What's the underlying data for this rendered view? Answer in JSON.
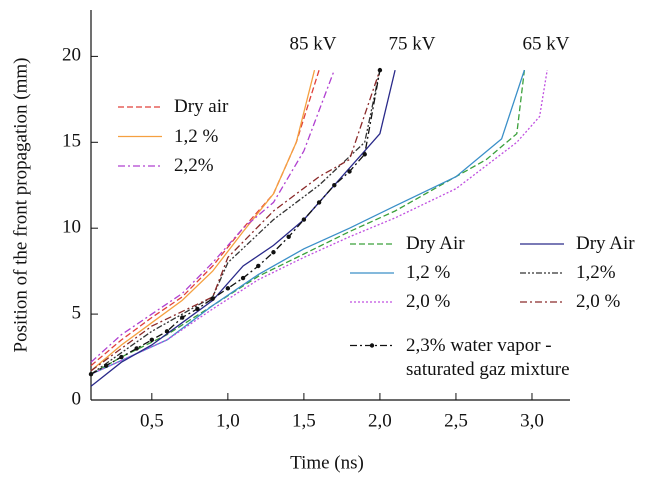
{
  "chart_data": {
    "type": "line",
    "xlabel": "Time (ns)",
    "ylabel": "Position of the front propagation (mm)",
    "annotations": [
      "85 kV",
      "75 kV",
      "65 kV"
    ],
    "xlim": [
      0.1,
      3.25
    ],
    "ylim": [
      0,
      22.7
    ],
    "xticks": [
      {
        "value": 0.5,
        "label": "0,5"
      },
      {
        "value": 1.0,
        "label": "1,0"
      },
      {
        "value": 1.5,
        "label": "1,5"
      },
      {
        "value": 2.0,
        "label": "2,0"
      },
      {
        "value": 2.5,
        "label": "2,5"
      },
      {
        "value": 3.0,
        "label": "3,0"
      }
    ],
    "yticks": [
      0,
      5,
      10,
      15,
      20
    ],
    "series": [
      {
        "name": "Dry air",
        "color": "#e0403a",
        "style": "dashed",
        "legend": "upper-left",
        "x": [
          0.1,
          0.3,
          0.5,
          0.7,
          0.9,
          1.1,
          1.3,
          1.45,
          1.6
        ],
        "values": [
          2,
          3.5,
          4.8,
          6,
          7.8,
          10,
          12,
          15,
          19.2
        ]
      },
      {
        "name": "1,2 %",
        "color": "#f5a040",
        "style": "solid",
        "legend": "upper-left",
        "x": [
          0.1,
          0.3,
          0.5,
          0.7,
          0.9,
          1.1,
          1.3,
          1.45,
          1.57
        ],
        "values": [
          1.7,
          3.2,
          4.5,
          5.8,
          7.5,
          9.8,
          12,
          15,
          19.2
        ]
      },
      {
        "name": "2,2%",
        "color": "#b040d0",
        "style": "dashdot",
        "legend": "upper-left",
        "x": [
          0.1,
          0.3,
          0.5,
          0.7,
          0.9,
          1.1,
          1.3,
          1.5,
          1.7
        ],
        "values": [
          2.2,
          3.8,
          5,
          6.2,
          8,
          10,
          11.5,
          14.5,
          19.2
        ]
      },
      {
        "name": "Dry Air",
        "color": "#3aa03a",
        "style": "dashed",
        "legend": "lower-right",
        "x": [
          0.1,
          0.3,
          0.6,
          0.9,
          1.2,
          1.5,
          1.8,
          2.1,
          2.4,
          2.7,
          2.9,
          2.95
        ],
        "values": [
          1.5,
          2.5,
          3.8,
          5.5,
          7.2,
          8.5,
          9.8,
          11,
          12.5,
          14,
          15.5,
          19.2
        ]
      },
      {
        "name": "1,2 %",
        "color": "#3a8fc8",
        "style": "solid",
        "legend": "lower-right",
        "x": [
          0.1,
          0.3,
          0.6,
          0.9,
          1.2,
          1.5,
          1.8,
          2.1,
          2.5,
          2.8,
          2.95
        ],
        "values": [
          1.5,
          2.3,
          3.5,
          5.5,
          7.3,
          8.8,
          10,
          11.3,
          13,
          15.2,
          19.2
        ]
      },
      {
        "name": "2,0 %",
        "color": "#c050e0",
        "style": "dotted",
        "legend": "lower-right",
        "x": [
          0.1,
          0.3,
          0.6,
          0.9,
          1.2,
          1.5,
          1.8,
          2.1,
          2.5,
          2.9,
          3.05,
          3.1
        ],
        "values": [
          1.5,
          2.3,
          3.5,
          5.3,
          7,
          8.3,
          9.5,
          10.6,
          12.3,
          15,
          16.5,
          19.2
        ]
      },
      {
        "name": "Dry Air",
        "color": "#2a2a8a",
        "style": "solid",
        "legend": "lower-right",
        "x": [
          0.1,
          0.3,
          0.5,
          0.7,
          0.9,
          1.1,
          1.3,
          1.5,
          1.7,
          1.9,
          2.0,
          2.1
        ],
        "values": [
          0.8,
          2.2,
          3.2,
          4.5,
          5.8,
          7.8,
          9,
          10.5,
          12.5,
          14.5,
          15.5,
          19.2
        ]
      },
      {
        "name": "1,2%",
        "color": "#333333",
        "style": "dashdotdot",
        "legend": "lower-right",
        "x": [
          0.1,
          0.5,
          0.9,
          1.0,
          1.3,
          1.6,
          1.9,
          2.0
        ],
        "values": [
          1.5,
          4,
          6,
          8,
          10.5,
          12.5,
          15,
          19.2
        ]
      },
      {
        "name": "2,0 %",
        "color": "#8b2a2a",
        "style": "dashdot",
        "legend": "lower-right",
        "x": [
          0.1,
          0.5,
          0.9,
          1.0,
          1.3,
          1.6,
          1.8,
          2.0
        ],
        "values": [
          1.7,
          4.3,
          6,
          8.3,
          11,
          13,
          14,
          19.2
        ]
      },
      {
        "name": "2,3% water vapor -\nsaturated gaz mixture",
        "color": "#111111",
        "style": "dashdot",
        "marker": true,
        "legend": "lower-right",
        "x": [
          0.1,
          0.2,
          0.3,
          0.4,
          0.5,
          0.6,
          0.7,
          0.8,
          0.9,
          1.0,
          1.1,
          1.2,
          1.3,
          1.4,
          1.5,
          1.6,
          1.7,
          1.8,
          1.9,
          2.0
        ],
        "values": [
          1.5,
          2.0,
          2.5,
          3.0,
          3.5,
          4.0,
          4.8,
          5.3,
          5.9,
          6.5,
          7.1,
          7.8,
          8.6,
          9.5,
          10.5,
          11.5,
          12.5,
          13.3,
          14.3,
          19.2
        ]
      }
    ]
  }
}
